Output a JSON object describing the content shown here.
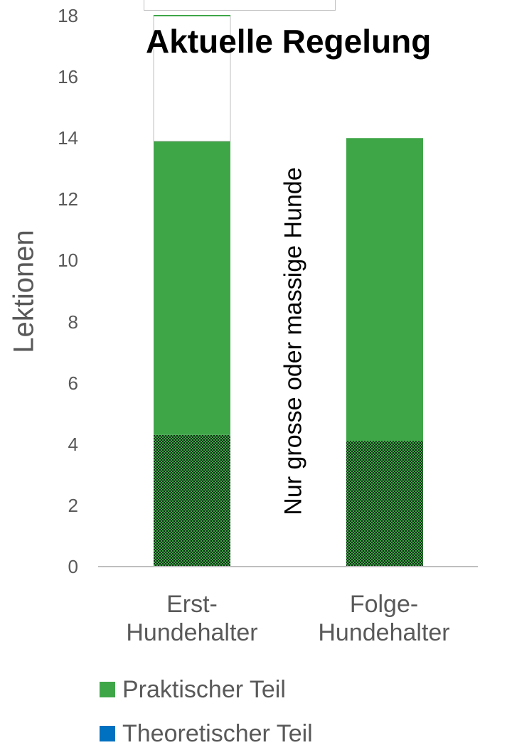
{
  "chart_data": {
    "type": "bar",
    "stacked": true,
    "title": "Aktuelle Regelung",
    "xlabel": "",
    "ylabel": "Lektionen",
    "ylim": [
      0,
      18
    ],
    "yticks": [
      "0",
      "2",
      "4",
      "6",
      "8",
      "10",
      "12",
      "14",
      "16",
      "18"
    ],
    "categories": [
      [
        "Erst-",
        "Hundehalter"
      ],
      [
        "Folge-",
        "Hundehalter"
      ]
    ],
    "series": [
      {
        "name": "Theoretischer Teil",
        "color": "#0070c0",
        "pattern": "dense-dots-on-green",
        "values": [
          4.3,
          4.1
        ]
      },
      {
        "name": "Praktischer Teil",
        "color": "#3fa648",
        "values": [
          9.6,
          9.9
        ]
      },
      {
        "name": "",
        "color": "#ffffff",
        "outline": true,
        "values": [
          4.1,
          0
        ]
      }
    ],
    "annotation": "Nur grosse oder massige Hunde",
    "grid": false,
    "legend_position": "bottom"
  },
  "legend": [
    {
      "label": "Praktischer Teil",
      "color": "#3fa648"
    },
    {
      "label": "Theoretischer Teil",
      "color": "#0070c0"
    }
  ]
}
